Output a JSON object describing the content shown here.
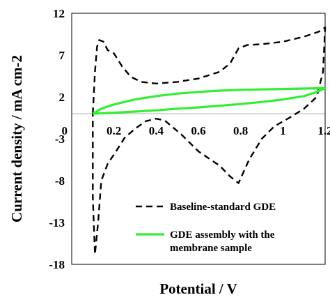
{
  "chart_data": {
    "type": "line",
    "xlabel": "Potential / V",
    "ylabel": "Current density / mA cm-2",
    "xlim": [
      0,
      1.2
    ],
    "ylim": [
      -18,
      12
    ],
    "xticks": [
      "0",
      "0.2",
      "0.4",
      "0.6",
      "0.8",
      "1",
      "1.2"
    ],
    "yticks": [
      "12",
      "7",
      "2",
      "-3",
      "-8",
      "-13",
      "-18"
    ],
    "zero_line": true,
    "legend_position": "bottom-right",
    "series": [
      {
        "name": "Baseline-standard GDE",
        "color": "#000000",
        "dash": "dashed",
        "points": [
          [
            0.1,
            0.0
          ],
          [
            0.11,
            5.0
          ],
          [
            0.12,
            8.0
          ],
          [
            0.13,
            8.8
          ],
          [
            0.15,
            8.6
          ],
          [
            0.17,
            7.6
          ],
          [
            0.2,
            7.2
          ],
          [
            0.24,
            5.6
          ],
          [
            0.28,
            4.4
          ],
          [
            0.33,
            3.8
          ],
          [
            0.4,
            3.6
          ],
          [
            0.5,
            3.8
          ],
          [
            0.6,
            4.2
          ],
          [
            0.7,
            5.0
          ],
          [
            0.75,
            6.0
          ],
          [
            0.79,
            7.8
          ],
          [
            0.83,
            8.2
          ],
          [
            0.9,
            8.3
          ],
          [
            1.0,
            8.6
          ],
          [
            1.1,
            9.2
          ],
          [
            1.17,
            9.8
          ],
          [
            1.2,
            10.3
          ],
          [
            1.19,
            5.0
          ],
          [
            1.16,
            2.0
          ],
          [
            1.1,
            0.6
          ],
          [
            1.03,
            -0.5
          ],
          [
            0.96,
            -1.5
          ],
          [
            0.9,
            -3.0
          ],
          [
            0.84,
            -5.5
          ],
          [
            0.79,
            -8.3
          ],
          [
            0.75,
            -7.5
          ],
          [
            0.7,
            -6.2
          ],
          [
            0.6,
            -4.5
          ],
          [
            0.52,
            -2.5
          ],
          [
            0.44,
            -0.8
          ],
          [
            0.4,
            -0.6
          ],
          [
            0.35,
            -0.9
          ],
          [
            0.3,
            -1.8
          ],
          [
            0.25,
            -2.9
          ],
          [
            0.21,
            -4.5
          ],
          [
            0.17,
            -6.0
          ],
          [
            0.14,
            -8.0
          ],
          [
            0.125,
            -13.0
          ],
          [
            0.11,
            -16.8
          ],
          [
            0.1,
            -10.0
          ],
          [
            0.1,
            0.0
          ]
        ]
      },
      {
        "name": "GDE assembly with the membrane sample",
        "color": "#33ee33",
        "dash": "solid",
        "points": [
          [
            0.1,
            0.0
          ],
          [
            0.14,
            0.6
          ],
          [
            0.2,
            1.1
          ],
          [
            0.3,
            1.7
          ],
          [
            0.4,
            2.1
          ],
          [
            0.5,
            2.4
          ],
          [
            0.6,
            2.6
          ],
          [
            0.7,
            2.75
          ],
          [
            0.8,
            2.85
          ],
          [
            0.9,
            2.9
          ],
          [
            1.0,
            2.95
          ],
          [
            1.1,
            3.0
          ],
          [
            1.2,
            3.05
          ],
          [
            1.15,
            2.5
          ],
          [
            1.1,
            2.1
          ],
          [
            1.0,
            1.7
          ],
          [
            0.9,
            1.4
          ],
          [
            0.8,
            1.15
          ],
          [
            0.7,
            0.95
          ],
          [
            0.6,
            0.75
          ],
          [
            0.5,
            0.6
          ],
          [
            0.4,
            0.4
          ],
          [
            0.3,
            0.25
          ],
          [
            0.2,
            0.12
          ],
          [
            0.1,
            0.0
          ]
        ]
      }
    ]
  }
}
